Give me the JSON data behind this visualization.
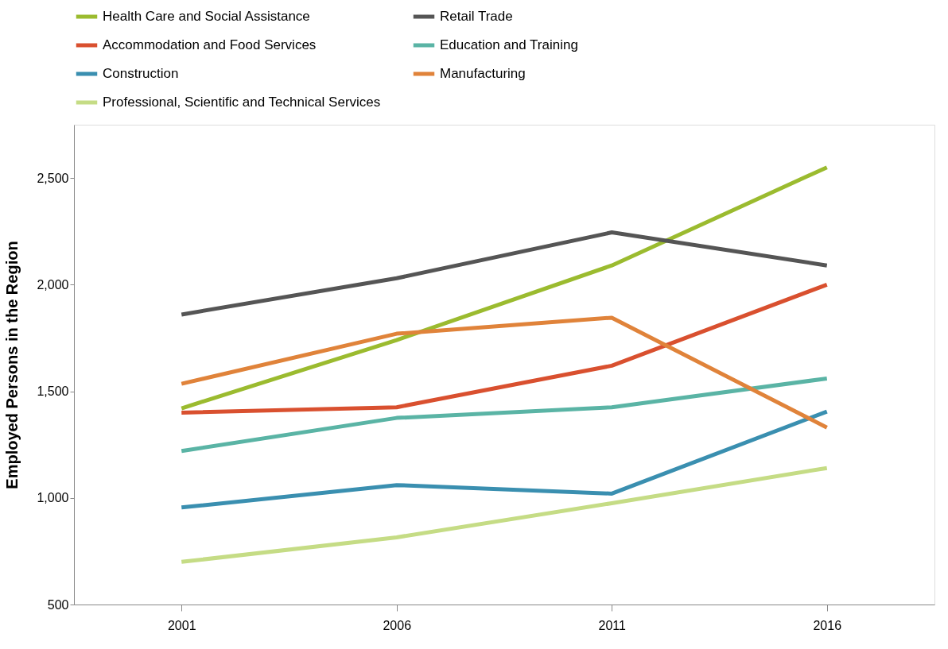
{
  "chart_data": {
    "type": "line",
    "ylabel": "Employed Persons in the Region",
    "categories": [
      "2001",
      "2006",
      "2011",
      "2016"
    ],
    "ylim": [
      500,
      2750
    ],
    "yticks": [
      {
        "value": 500,
        "label": "500"
      },
      {
        "value": 1000,
        "label": "1,000"
      },
      {
        "value": 1500,
        "label": "1,500"
      },
      {
        "value": 2000,
        "label": "2,000"
      },
      {
        "value": 2500,
        "label": "2,500"
      }
    ],
    "grid": false,
    "legend": "top",
    "marker": "none",
    "line_style": "solid",
    "series": [
      {
        "name": "Health Care and Social Assistance",
        "color": "#9bbb2f",
        "values": [
          1420,
          1740,
          2090,
          2550
        ]
      },
      {
        "name": "Retail Trade",
        "color": "#555555",
        "values": [
          1860,
          2030,
          2245,
          2090
        ]
      },
      {
        "name": "Accommodation and Food Services",
        "color": "#d9502f",
        "values": [
          1400,
          1425,
          1620,
          2000
        ]
      },
      {
        "name": "Education and Training",
        "color": "#5ab4a5",
        "values": [
          1220,
          1375,
          1425,
          1560
        ]
      },
      {
        "name": "Construction",
        "color": "#3a8fb0",
        "values": [
          955,
          1060,
          1020,
          1405
        ]
      },
      {
        "name": "Manufacturing",
        "color": "#e0833a",
        "values": [
          1535,
          1770,
          1845,
          1330
        ]
      },
      {
        "name": "Professional, Scientific and Technical Services",
        "color": "#c5dc85",
        "values": [
          700,
          815,
          975,
          1140
        ]
      }
    ]
  }
}
